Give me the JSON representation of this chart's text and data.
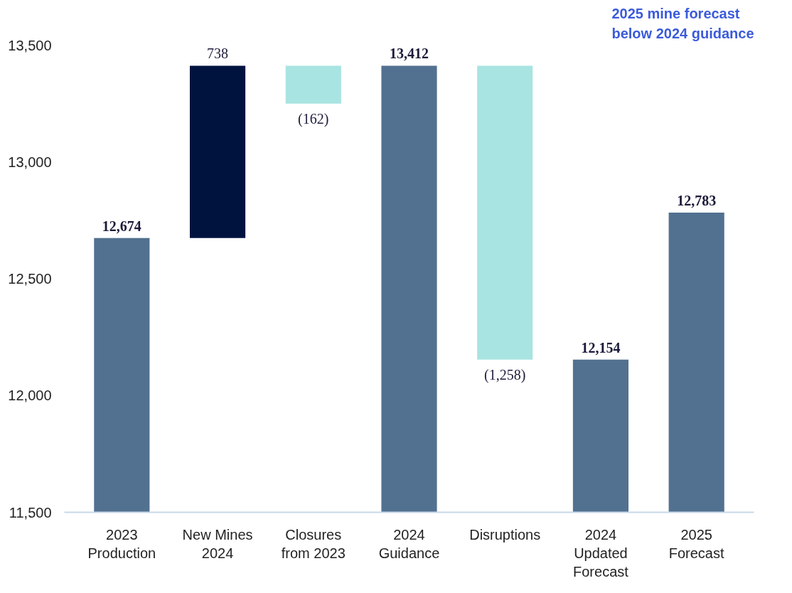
{
  "chart_data": {
    "type": "bar",
    "title": "2025 mine forecast below 2024 guidance",
    "categories": [
      "2023\nProduction",
      "New Mines\n2024",
      "Closures\nfrom 2023",
      "2024\nGuidance",
      "Disruptions",
      "2024\nUpdated\nForecast",
      "2025\nForecast"
    ],
    "values": [
      12674,
      738,
      -162,
      13412,
      -1258,
      12154,
      12783
    ],
    "base": [
      0,
      12674,
      13412,
      0,
      13412,
      0,
      0
    ],
    "colors": [
      "#527190",
      "#00133f",
      "#a8e4e1",
      "#527190",
      "#a8e4e1",
      "#527190",
      "#527190"
    ],
    "value_labels": [
      "12,674",
      "738",
      "(162)",
      "13,412",
      "(1,258)",
      "12,154",
      "12,783"
    ],
    "ylim": [
      11500,
      13500
    ],
    "yticks": [
      {
        "value": 11500,
        "label": "11,500"
      },
      {
        "value": 12000,
        "label": "12,000"
      },
      {
        "value": 12500,
        "label": "12,500"
      },
      {
        "value": 13000,
        "label": "13,000"
      },
      {
        "value": 13500,
        "label": "13,500"
      }
    ],
    "grid": false
  }
}
